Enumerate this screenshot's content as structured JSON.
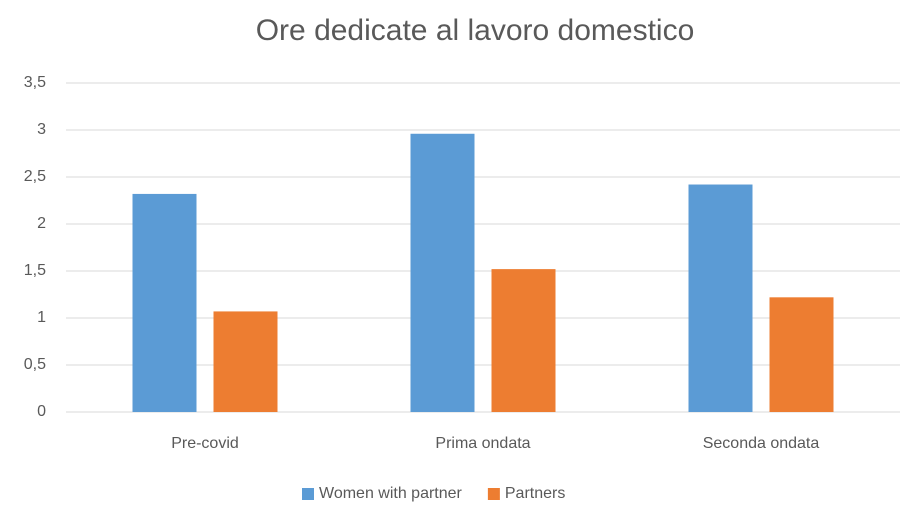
{
  "chart_data": {
    "type": "bar",
    "title": "Ore dedicate al lavoro domestico",
    "categories": [
      "Pre-covid",
      "Prima ondata",
      "Seconda ondata"
    ],
    "series": [
      {
        "name": "Women with partner",
        "color": "#5b9bd5",
        "values": [
          2.32,
          2.96,
          2.42
        ]
      },
      {
        "name": "Partners",
        "color": "#ed7d31",
        "values": [
          1.07,
          1.52,
          1.22
        ]
      }
    ],
    "ylim": [
      0,
      3.5
    ],
    "yticks": [
      0,
      {
        "value": 0.5,
        "label": "0,5"
      },
      1,
      {
        "value": 1.5,
        "label": "1,5"
      },
      2,
      {
        "value": 2.5,
        "label": "2,5"
      },
      3,
      {
        "value": 3.5,
        "label": "3,5"
      }
    ],
    "grid": true,
    "legend": "bottom"
  }
}
